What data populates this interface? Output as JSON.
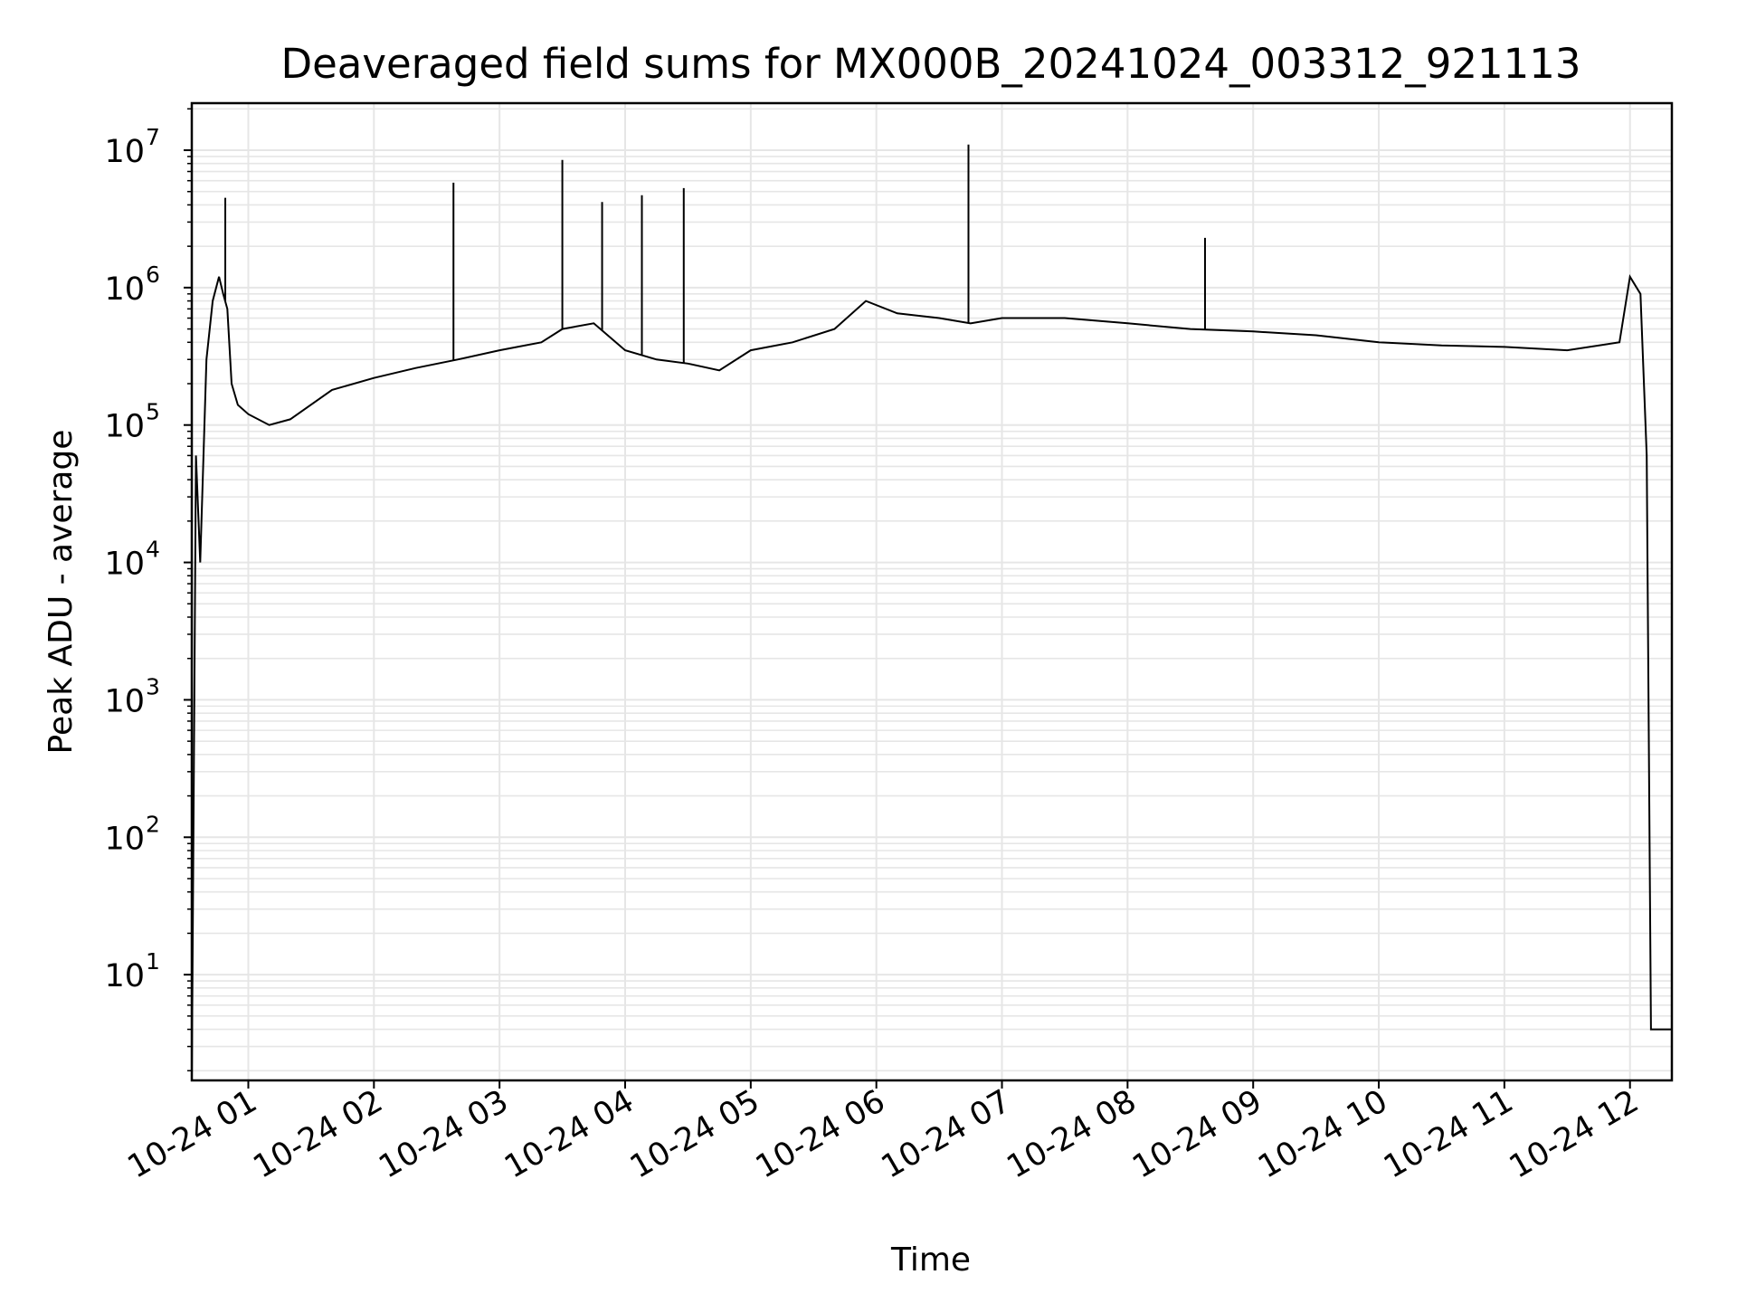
{
  "chart_data": {
    "type": "line",
    "title": "Deaveraged field sums for MX000B_20241024_003312_921113",
    "xlabel": "Time",
    "ylabel": "Peak ADU - average",
    "yscale": "log",
    "ylim": [
      1.7,
      22000000
    ],
    "xlim": [
      "2024-10-24 00:33",
      "2024-10-24 12:20"
    ],
    "grid": true,
    "line_color": "#000000",
    "grid_color": "#e6e6e6",
    "x_tick_labels": [
      "10-24 01",
      "10-24 02",
      "10-24 03",
      "10-24 04",
      "10-24 05",
      "10-24 06",
      "10-24 07",
      "10-24 08",
      "10-24 09",
      "10-24 10",
      "10-24 11",
      "10-24 12"
    ],
    "y_tick_labels": [
      {
        "base": "10",
        "exp": "1"
      },
      {
        "base": "10",
        "exp": "2"
      },
      {
        "base": "10",
        "exp": "3"
      },
      {
        "base": "10",
        "exp": "4"
      },
      {
        "base": "10",
        "exp": "5"
      },
      {
        "base": "10",
        "exp": "6"
      },
      {
        "base": "10",
        "exp": "7"
      }
    ],
    "series": [
      {
        "x": [
          "2024-10-24 00:33",
          "2024-10-24 00:35",
          "2024-10-24 00:37",
          "2024-10-24 00:40",
          "2024-10-24 00:43",
          "2024-10-24 00:46",
          "2024-10-24 00:48",
          "2024-10-24 00:50",
          "2024-10-24 00:52",
          "2024-10-24 00:55",
          "2024-10-24 01:00",
          "2024-10-24 01:10",
          "2024-10-24 01:20",
          "2024-10-24 01:40",
          "2024-10-24 02:00",
          "2024-10-24 02:20",
          "2024-10-24 02:40",
          "2024-10-24 03:00",
          "2024-10-24 03:20",
          "2024-10-24 03:30",
          "2024-10-24 03:45",
          "2024-10-24 04:00",
          "2024-10-24 04:15",
          "2024-10-24 04:30",
          "2024-10-24 04:45",
          "2024-10-24 05:00",
          "2024-10-24 05:20",
          "2024-10-24 05:40",
          "2024-10-24 05:55",
          "2024-10-24 06:10",
          "2024-10-24 06:30",
          "2024-10-24 06:45",
          "2024-10-24 07:00",
          "2024-10-24 07:30",
          "2024-10-24 08:00",
          "2024-10-24 08:30",
          "2024-10-24 09:00",
          "2024-10-24 09:30",
          "2024-10-24 10:00",
          "2024-10-24 10:30",
          "2024-10-24 11:00",
          "2024-10-24 11:30",
          "2024-10-24 11:55",
          "2024-10-24 12:00",
          "2024-10-24 12:05",
          "2024-10-24 12:08",
          "2024-10-24 12:10",
          "2024-10-24 12:20"
        ],
        "y": [
          1.7,
          60000,
          10000,
          300000,
          800000,
          1200000,
          900000,
          700000,
          200000,
          140000,
          120000,
          100000,
          110000,
          180000,
          220000,
          260000,
          300000,
          350000,
          400000,
          500000,
          550000,
          350000,
          300000,
          280000,
          250000,
          350000,
          400000,
          500000,
          800000,
          650000,
          600000,
          550000,
          600000,
          600000,
          550000,
          500000,
          480000,
          450000,
          400000,
          380000,
          370000,
          350000,
          400000,
          1200000,
          900000,
          60000,
          4,
          4
        ]
      }
    ],
    "notable_spikes": [
      {
        "x": "2024-10-24 00:49",
        "y": 4500000
      },
      {
        "x": "2024-10-24 02:38",
        "y": 5800000
      },
      {
        "x": "2024-10-24 03:30",
        "y": 8500000
      },
      {
        "x": "2024-10-24 03:49",
        "y": 4200000
      },
      {
        "x": "2024-10-24 04:08",
        "y": 4700000
      },
      {
        "x": "2024-10-24 04:28",
        "y": 5300000
      },
      {
        "x": "2024-10-24 06:44",
        "y": 11000000
      },
      {
        "x": "2024-10-24 08:37",
        "y": 2300000
      }
    ]
  }
}
